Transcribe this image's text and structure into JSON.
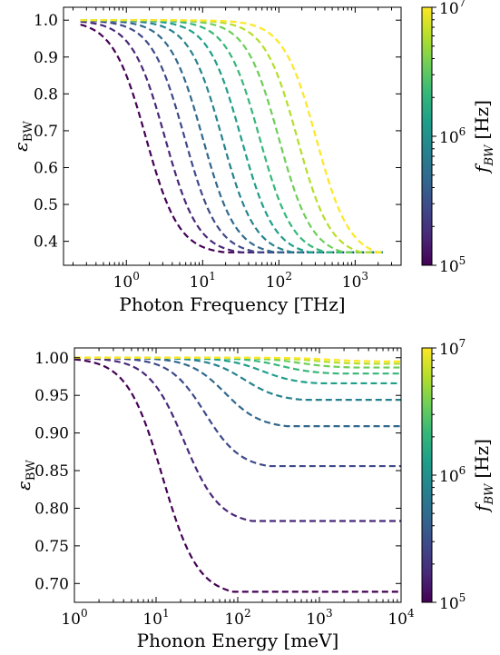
{
  "colors": {
    "viridis": [
      "#440154",
      "#482878",
      "#3e4989",
      "#31688e",
      "#26828e",
      "#1f9e89",
      "#35b779",
      "#6ece58",
      "#b5de2b",
      "#fde725"
    ]
  },
  "chart_data": [
    {
      "type": "line",
      "xlabel": "Photon Frequency [THz]",
      "ylabel": "ε",
      "ylabel_sub": "BW",
      "xscale": "log",
      "xlim": [
        0.15,
        4000
      ],
      "ylim": [
        0.335,
        1.035
      ],
      "yticks": [
        "0.4",
        "0.5",
        "0.6",
        "0.7",
        "0.8",
        "0.9",
        "1.0"
      ],
      "xticks": [
        {
          "base": "10",
          "exp": "0"
        },
        {
          "base": "10",
          "exp": "1"
        },
        {
          "base": "10",
          "exp": "2"
        },
        {
          "base": "10",
          "exp": "3"
        }
      ],
      "x_start": 0.25,
      "floor": 0.37,
      "series": [
        {
          "x0": 1.8,
          "knee": 20
        },
        {
          "x0": 3.2,
          "knee": 33
        },
        {
          "x0": 5.8,
          "knee": 56
        },
        {
          "x0": 10,
          "knee": 92
        },
        {
          "x0": 18,
          "knee": 155
        },
        {
          "x0": 32,
          "knee": 260
        },
        {
          "x0": 56,
          "knee": 430
        },
        {
          "x0": 100,
          "knee": 720
        },
        {
          "x0": 175,
          "knee": 1200
        },
        {
          "x0": 310,
          "knee": 2000
        }
      ],
      "colorbar": {
        "label": "f",
        "label_sub": "BW",
        "label_unit": "[Hz]",
        "ticks": [
          {
            "base": "10",
            "exp": "7"
          },
          {
            "base": "10",
            "exp": "6"
          },
          {
            "base": "10",
            "exp": "5"
          }
        ]
      }
    },
    {
      "type": "line",
      "xlabel": "Phonon Energy [meV]",
      "ylabel": "ε",
      "ylabel_sub": "BW",
      "xscale": "log",
      "xlim": [
        1,
        10000
      ],
      "ylim": [
        0.675,
        1.013
      ],
      "yticks": [
        "0.70",
        "0.75",
        "0.80",
        "0.85",
        "0.90",
        "0.95",
        "1.00"
      ],
      "xticks": [
        {
          "base": "10",
          "exp": "0"
        },
        {
          "base": "10",
          "exp": "1"
        },
        {
          "base": "10",
          "exp": "2"
        },
        {
          "base": "10",
          "exp": "3"
        },
        {
          "base": "10",
          "exp": "4"
        }
      ],
      "x_start": 1,
      "x_end": 10000,
      "series": [
        {
          "floor": 0.689,
          "knee": 88,
          "x0": 12
        },
        {
          "floor": 0.783,
          "knee": 150,
          "x0": 22
        },
        {
          "floor": 0.856,
          "knee": 240,
          "x0": 40
        },
        {
          "floor": 0.909,
          "knee": 400,
          "x0": 70
        },
        {
          "floor": 0.944,
          "knee": 650,
          "x0": 120
        },
        {
          "floor": 0.966,
          "knee": 1000,
          "x0": 200
        },
        {
          "floor": 0.979,
          "knee": 1700,
          "x0": 340
        },
        {
          "floor": 0.987,
          "knee": 2800,
          "x0": 560
        },
        {
          "floor": 0.992,
          "knee": 4500,
          "x0": 900
        },
        {
          "floor": 0.995,
          "knee": 7000,
          "x0": 1400
        }
      ],
      "colorbar": {
        "label": "f",
        "label_sub": "BW",
        "label_unit": "[Hz]",
        "ticks": [
          {
            "base": "10",
            "exp": "7"
          },
          {
            "base": "10",
            "exp": "6"
          },
          {
            "base": "10",
            "exp": "5"
          }
        ]
      }
    }
  ]
}
